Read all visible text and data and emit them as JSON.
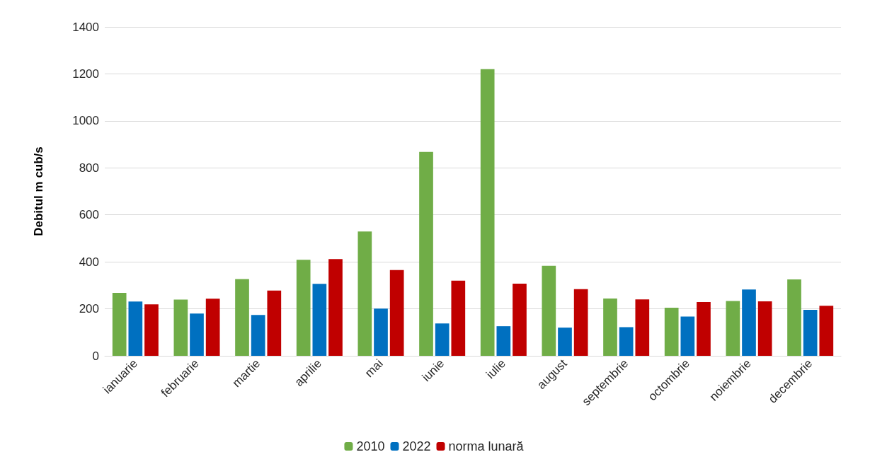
{
  "chart_data": {
    "type": "bar",
    "ylabel": "Debitul m cub/s",
    "categories": [
      "ianuarie",
      "februarie",
      "martie",
      "aprilie",
      "mai",
      "iunie",
      "iulie",
      "august",
      "septembrie",
      "octombrie",
      "noiembrie",
      "decembrie"
    ],
    "series": [
      {
        "name": "2010",
        "color": "#70ad47",
        "values": [
          268,
          239,
          327,
          409,
          529,
          868,
          1220,
          383,
          244,
          205,
          233,
          325
        ]
      },
      {
        "name": "2022",
        "color": "#0070c0",
        "values": [
          231,
          180,
          174,
          306,
          201,
          138,
          126,
          120,
          122,
          167,
          282,
          196
        ]
      },
      {
        "name": "norma lunară",
        "color": "#c00000",
        "values": [
          219,
          243,
          278,
          412,
          365,
          320,
          307,
          284,
          240,
          229,
          232,
          213
        ]
      }
    ],
    "ylim": [
      0,
      1400
    ],
    "yticks": [
      0,
      200,
      400,
      600,
      800,
      1000,
      1200,
      1400
    ],
    "grid": "y",
    "legend": "bottom"
  }
}
